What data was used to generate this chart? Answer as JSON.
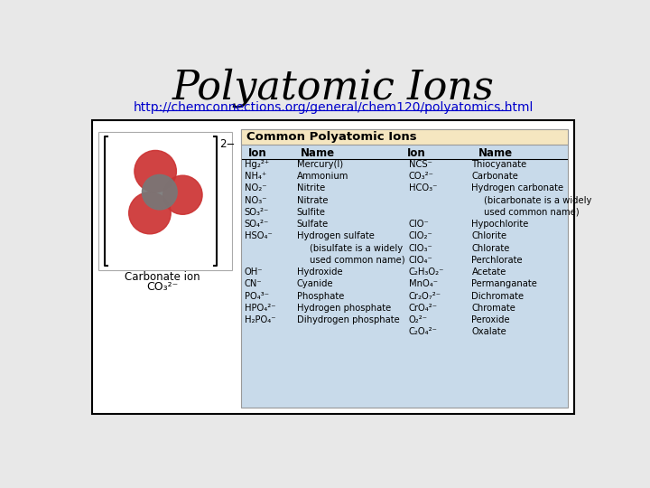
{
  "title": "Polyatomic Ions",
  "url": "http://chemconnections.org/general/chem120/polyatomics.html",
  "bg_color": "#e8e8e8",
  "title_size": 32,
  "url_color": "#0000cc",
  "table_title": "Common Polyatomic Ions",
  "table_title_bg": "#f5e6c0",
  "table_bg": "#c8daea",
  "left_col_ions": [
    "Hg₂²⁺",
    "NH₄⁺",
    "NO₂⁻",
    "NO₃⁻",
    "SO₃²⁻",
    "SO₄²⁻",
    "HSO₄⁻",
    "",
    "",
    "OH⁻",
    "CN⁻",
    "PO₄³⁻",
    "HPO₄²⁻",
    "H₂PO₄⁻"
  ],
  "left_col_names": [
    "Mercury(I)",
    "Ammonium",
    "Nitrite",
    "Nitrate",
    "Sulfite",
    "Sulfate",
    "Hydrogen sulfate",
    "(bisulfate is a widely",
    "used common name)",
    "Hydroxide",
    "Cyanide",
    "Phosphate",
    "Hydrogen phosphate",
    "Dihydrogen phosphate"
  ],
  "right_col_ions": [
    "NCS⁻",
    "CO₃²⁻",
    "HCO₃⁻",
    "",
    "",
    "ClO⁻",
    "ClO₂⁻",
    "ClO₃⁻",
    "ClO₄⁻",
    "C₂H₃O₂⁻",
    "MnO₄⁻",
    "Cr₂O₇²⁻",
    "CrO₄²⁻",
    "O₂²⁻",
    "C₂O₄²⁻"
  ],
  "right_col_names": [
    "Thiocyanate",
    "Carbonate",
    "Hydrogen carbonate",
    "(bicarbonate is a widely",
    "used common name)",
    "Hypochlorite",
    "Chlorite",
    "Chlorate",
    "Perchlorate",
    "Acetate",
    "Permanganate",
    "Dichromate",
    "Chromate",
    "Peroxide",
    "Oxalate"
  ]
}
